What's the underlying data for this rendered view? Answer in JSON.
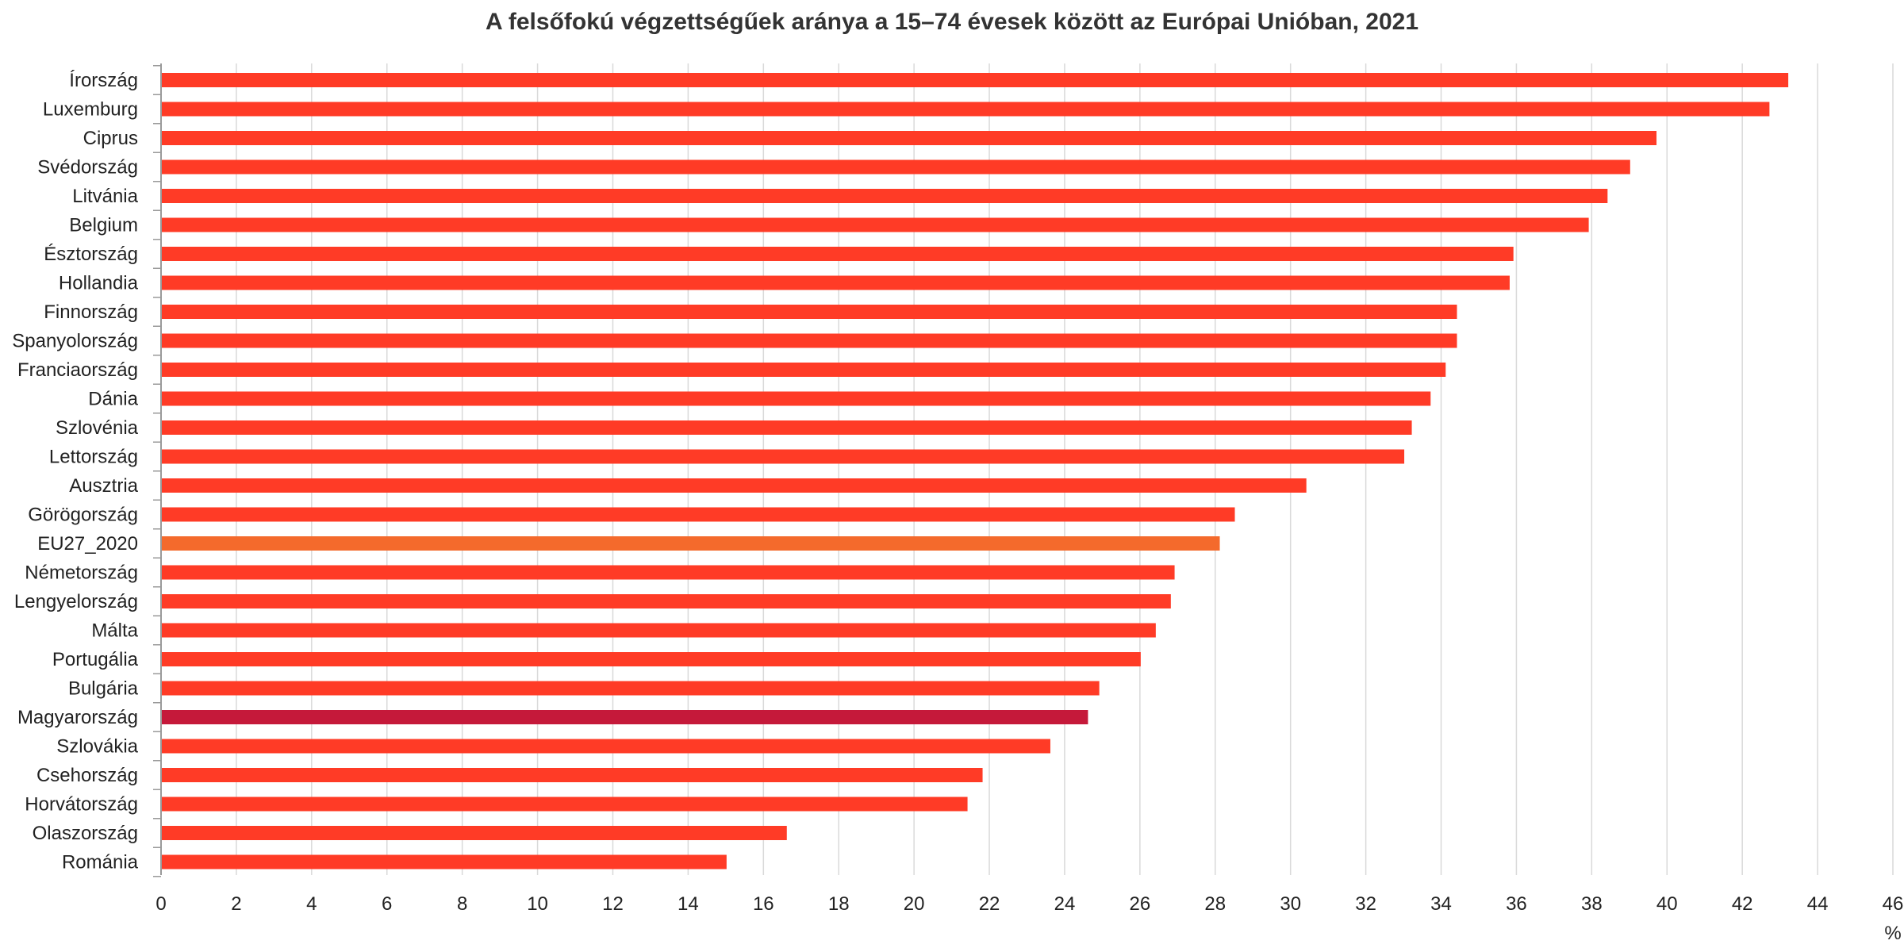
{
  "chart_data": {
    "type": "bar",
    "orientation": "horizontal",
    "title": "A felsőfokú végzettségűek aránya a 15–74 évesek között az Európai Unióban, 2021",
    "x_unit": "%",
    "xlim": [
      0,
      46
    ],
    "xticks": [
      "0",
      "2",
      "4",
      "6",
      "8",
      "10",
      "12",
      "14",
      "16",
      "18",
      "20",
      "22",
      "24",
      "26",
      "28",
      "30",
      "32",
      "34",
      "36",
      "38",
      "40",
      "42",
      "44",
      "46"
    ],
    "grid": "vertical",
    "categories": [
      "Írország",
      "Luxemburg",
      "Ciprus",
      "Svédország",
      "Litvánia",
      "Belgium",
      "Észtország",
      "Hollandia",
      "Finnország",
      "Spanyolország",
      "Franciaország",
      "Dánia",
      "Szlovénia",
      "Lettország",
      "Ausztria",
      "Görögország",
      "EU27_2020",
      "Németország",
      "Lengyelország",
      "Málta",
      "Portugália",
      "Bulgária",
      "Magyarország",
      "Szlovákia",
      "Csehország",
      "Horvátország",
      "Olaszország",
      "Románia"
    ],
    "values": [
      43.2,
      42.7,
      39.7,
      39.0,
      38.4,
      37.9,
      35.9,
      35.8,
      34.4,
      34.4,
      34.1,
      33.7,
      33.2,
      33.0,
      30.4,
      28.5,
      28.1,
      26.9,
      26.8,
      26.4,
      26.0,
      24.9,
      24.6,
      23.6,
      21.8,
      21.4,
      16.6,
      15.0
    ],
    "colors": {
      "default": "#ff3b26",
      "EU27_2020": "#f46a2c",
      "Magyarország": "#c5193a"
    }
  }
}
